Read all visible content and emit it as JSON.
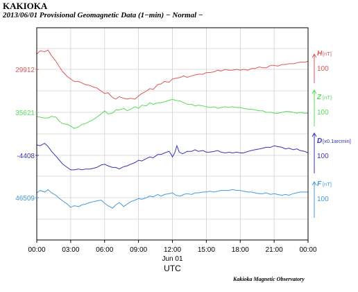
{
  "header": {
    "station": "KAKIOKA",
    "subtitle": "2013/06/01  Provisional Geomagnetic Data (1−min)  − Normal −"
  },
  "footer": {
    "credit": "Kakioka Magnetic Observatory"
  },
  "chart_data": {
    "type": "line",
    "title": "KAKIOKA",
    "subtitle": "2013/06/01  Provisional Geomagnetic Data (1−min)  − Normal −",
    "xlabel": "UTC",
    "x_tick_labels": [
      "00:00",
      "03:00",
      "06:00",
      "09:00",
      "12:00",
      "15:00",
      "18:00",
      "21:00",
      "00:00"
    ],
    "x_date_label": "Jun 01",
    "x_range_hours": [
      0,
      24
    ],
    "grid": true,
    "series": [
      {
        "name": "H",
        "unit_label": "[nT]",
        "color": "#e05555",
        "ref_value_label": "29912",
        "scale_label": "100",
        "points": [
          [
            0,
            -38
          ],
          [
            0.3,
            -46
          ],
          [
            0.7,
            -44
          ],
          [
            1.0,
            -48
          ],
          [
            1.3,
            -34
          ],
          [
            1.7,
            -20
          ],
          [
            2.0,
            -6
          ],
          [
            2.3,
            6
          ],
          [
            2.7,
            18
          ],
          [
            3.0,
            24
          ],
          [
            3.3,
            30
          ],
          [
            3.7,
            30
          ],
          [
            4.0,
            34
          ],
          [
            4.3,
            38
          ],
          [
            4.7,
            40
          ],
          [
            5.0,
            44
          ],
          [
            5.3,
            46
          ],
          [
            5.7,
            54
          ],
          [
            6.0,
            60
          ],
          [
            6.3,
            58
          ],
          [
            6.7,
            70
          ],
          [
            7.0,
            74
          ],
          [
            7.3,
            68
          ],
          [
            7.7,
            72
          ],
          [
            8.0,
            74
          ],
          [
            8.3,
            72
          ],
          [
            8.7,
            74
          ],
          [
            9.0,
            66
          ],
          [
            9.3,
            60
          ],
          [
            9.7,
            54
          ],
          [
            10.0,
            48
          ],
          [
            10.3,
            50
          ],
          [
            10.7,
            38
          ],
          [
            11.0,
            36
          ],
          [
            11.3,
            30
          ],
          [
            11.7,
            32
          ],
          [
            12.0,
            24
          ],
          [
            12.3,
            22
          ],
          [
            12.7,
            20
          ],
          [
            13.0,
            16
          ],
          [
            13.3,
            20
          ],
          [
            13.7,
            16
          ],
          [
            14.0,
            14
          ],
          [
            14.3,
            12
          ],
          [
            14.7,
            12
          ],
          [
            15.0,
            8
          ],
          [
            15.3,
            8
          ],
          [
            15.7,
            6
          ],
          [
            16.0,
            2
          ],
          [
            16.3,
            4
          ],
          [
            16.7,
            0
          ],
          [
            17.0,
            2
          ],
          [
            17.3,
            2
          ],
          [
            17.7,
            0
          ],
          [
            18.0,
            2
          ],
          [
            18.3,
            0
          ],
          [
            18.7,
            2
          ],
          [
            19.0,
            -2
          ],
          [
            19.3,
            -2
          ],
          [
            19.7,
            -6
          ],
          [
            20.0,
            -4
          ],
          [
            20.3,
            -4
          ],
          [
            20.7,
            -10
          ],
          [
            21.0,
            -10
          ],
          [
            21.3,
            -8
          ],
          [
            21.7,
            -12
          ],
          [
            22.0,
            -12
          ],
          [
            22.3,
            -14
          ],
          [
            22.7,
            -14
          ],
          [
            23.0,
            -16
          ],
          [
            23.3,
            -18
          ],
          [
            23.7,
            -18
          ],
          [
            24.0,
            -20
          ]
        ]
      },
      {
        "name": "Z",
        "unit_label": "[nT]",
        "color": "#55dd55",
        "ref_value_label": "35621",
        "scale_label": "100",
        "points": [
          [
            0,
            10
          ],
          [
            0.3,
            12
          ],
          [
            0.7,
            14
          ],
          [
            1.0,
            14
          ],
          [
            1.3,
            10
          ],
          [
            1.7,
            12
          ],
          [
            2.0,
            22
          ],
          [
            2.3,
            28
          ],
          [
            2.7,
            30
          ],
          [
            3.0,
            34
          ],
          [
            3.3,
            40
          ],
          [
            3.7,
            36
          ],
          [
            4.0,
            30
          ],
          [
            4.3,
            28
          ],
          [
            4.7,
            22
          ],
          [
            5.0,
            18
          ],
          [
            5.3,
            12
          ],
          [
            5.7,
            4
          ],
          [
            6.0,
            -4
          ],
          [
            6.3,
            4
          ],
          [
            6.7,
            2
          ],
          [
            7.0,
            -6
          ],
          [
            7.3,
            -6
          ],
          [
            7.7,
            -10
          ],
          [
            8.0,
            -4
          ],
          [
            8.3,
            -8
          ],
          [
            8.7,
            -14
          ],
          [
            9.0,
            -10
          ],
          [
            9.3,
            -18
          ],
          [
            9.7,
            -16
          ],
          [
            10.0,
            -24
          ],
          [
            10.3,
            -20
          ],
          [
            10.7,
            -24
          ],
          [
            11.0,
            -24
          ],
          [
            11.3,
            -26
          ],
          [
            11.7,
            -30
          ],
          [
            12.0,
            -32
          ],
          [
            12.3,
            -30
          ],
          [
            12.7,
            -28
          ],
          [
            13.0,
            -24
          ],
          [
            13.3,
            -20
          ],
          [
            13.7,
            -20
          ],
          [
            14.0,
            -16
          ],
          [
            14.3,
            -18
          ],
          [
            14.7,
            -16
          ],
          [
            15.0,
            -14
          ],
          [
            15.3,
            -12
          ],
          [
            15.7,
            -14
          ],
          [
            16.0,
            -10
          ],
          [
            16.3,
            -12
          ],
          [
            16.7,
            -14
          ],
          [
            17.0,
            -12
          ],
          [
            17.3,
            -14
          ],
          [
            17.7,
            -12
          ],
          [
            18.0,
            -12
          ],
          [
            18.3,
            -10
          ],
          [
            18.7,
            -8
          ],
          [
            19.0,
            -8
          ],
          [
            19.3,
            -6
          ],
          [
            19.7,
            -4
          ],
          [
            20.0,
            -4
          ],
          [
            20.3,
            0
          ],
          [
            20.7,
            0
          ],
          [
            21.0,
            2
          ],
          [
            21.3,
            2
          ],
          [
            21.7,
            0
          ],
          [
            22.0,
            -2
          ],
          [
            22.3,
            -2
          ],
          [
            22.7,
            0
          ],
          [
            23.0,
            2
          ],
          [
            23.3,
            0
          ],
          [
            23.7,
            2
          ],
          [
            24.0,
            2
          ]
        ]
      },
      {
        "name": "D",
        "unit_label": "[x0.1arcmin]",
        "color": "#3333bb",
        "ref_value_label": "-4408",
        "scale_label": "100",
        "points": [
          [
            0,
            -26
          ],
          [
            0.3,
            -24
          ],
          [
            0.7,
            -30
          ],
          [
            1.0,
            -22
          ],
          [
            1.3,
            -10
          ],
          [
            1.7,
            2
          ],
          [
            2.0,
            12
          ],
          [
            2.3,
            22
          ],
          [
            2.7,
            30
          ],
          [
            3.0,
            36
          ],
          [
            3.3,
            36
          ],
          [
            3.7,
            34
          ],
          [
            4.0,
            36
          ],
          [
            4.3,
            34
          ],
          [
            4.7,
            34
          ],
          [
            5.0,
            32
          ],
          [
            5.3,
            30
          ],
          [
            5.7,
            24
          ],
          [
            6.0,
            22
          ],
          [
            6.3,
            26
          ],
          [
            6.7,
            30
          ],
          [
            7.0,
            30
          ],
          [
            7.3,
            34
          ],
          [
            7.7,
            28
          ],
          [
            8.0,
            26
          ],
          [
            8.3,
            22
          ],
          [
            8.7,
            18
          ],
          [
            9.0,
            12
          ],
          [
            9.3,
            14
          ],
          [
            9.7,
            8
          ],
          [
            10.0,
            4
          ],
          [
            10.3,
            6
          ],
          [
            10.7,
            -2
          ],
          [
            11.0,
            -2
          ],
          [
            11.3,
            -6
          ],
          [
            11.7,
            -10
          ],
          [
            11.9,
            -2
          ],
          [
            12.0,
            4
          ],
          [
            12.2,
            -6
          ],
          [
            12.4,
            -24
          ],
          [
            12.6,
            -8
          ],
          [
            12.9,
            -4
          ],
          [
            13.3,
            -10
          ],
          [
            13.7,
            -10
          ],
          [
            14.0,
            -14
          ],
          [
            14.3,
            -10
          ],
          [
            14.7,
            -12
          ],
          [
            15.0,
            -8
          ],
          [
            15.3,
            -8
          ],
          [
            15.7,
            -10
          ],
          [
            16.0,
            -12
          ],
          [
            16.3,
            -8
          ],
          [
            16.7,
            -6
          ],
          [
            17.0,
            -8
          ],
          [
            17.3,
            -6
          ],
          [
            17.7,
            -8
          ],
          [
            18.0,
            -6
          ],
          [
            18.3,
            -6
          ],
          [
            18.7,
            -10
          ],
          [
            19.0,
            -12
          ],
          [
            19.3,
            -14
          ],
          [
            19.7,
            -16
          ],
          [
            20.0,
            -18
          ],
          [
            20.3,
            -20
          ],
          [
            20.7,
            -20
          ],
          [
            21.0,
            -24
          ],
          [
            21.3,
            -22
          ],
          [
            21.7,
            -20
          ],
          [
            22.0,
            -16
          ],
          [
            22.3,
            -18
          ],
          [
            22.7,
            -14
          ],
          [
            23.0,
            -16
          ],
          [
            23.3,
            -12
          ],
          [
            23.7,
            -10
          ],
          [
            24.0,
            -6
          ]
        ]
      },
      {
        "name": "F",
        "unit_label": "[nT]",
        "color": "#4499dd",
        "ref_value_label": "46509",
        "scale_label": "100",
        "points": [
          [
            0,
            -12
          ],
          [
            0.3,
            -18
          ],
          [
            0.7,
            -14
          ],
          [
            1.0,
            -20
          ],
          [
            1.3,
            -12
          ],
          [
            1.7,
            -6
          ],
          [
            2.0,
            2
          ],
          [
            2.3,
            8
          ],
          [
            2.7,
            16
          ],
          [
            3.0,
            24
          ],
          [
            3.3,
            20
          ],
          [
            3.7,
            22
          ],
          [
            4.0,
            18
          ],
          [
            4.3,
            16
          ],
          [
            4.7,
            12
          ],
          [
            5.0,
            10
          ],
          [
            5.3,
            8
          ],
          [
            5.7,
            6
          ],
          [
            6.0,
            14
          ],
          [
            6.3,
            20
          ],
          [
            6.7,
            26
          ],
          [
            7.0,
            18
          ],
          [
            7.3,
            12
          ],
          [
            7.7,
            22
          ],
          [
            8.0,
            16
          ],
          [
            8.3,
            10
          ],
          [
            8.7,
            6
          ],
          [
            9.0,
            2
          ],
          [
            9.3,
            4
          ],
          [
            9.7,
            0
          ],
          [
            10.0,
            -4
          ],
          [
            10.3,
            -2
          ],
          [
            10.7,
            -8
          ],
          [
            11.0,
            -4
          ],
          [
            11.3,
            -8
          ],
          [
            11.7,
            -10
          ],
          [
            12.0,
            -12
          ],
          [
            12.3,
            -6
          ],
          [
            12.7,
            -4
          ],
          [
            13.0,
            -8
          ],
          [
            13.3,
            -10
          ],
          [
            13.7,
            -8
          ],
          [
            14.0,
            -12
          ],
          [
            14.3,
            -12
          ],
          [
            14.7,
            -14
          ],
          [
            15.0,
            -14
          ],
          [
            15.3,
            -16
          ],
          [
            15.7,
            -14
          ],
          [
            16.0,
            -16
          ],
          [
            16.3,
            -18
          ],
          [
            16.7,
            -18
          ],
          [
            17.0,
            -18
          ],
          [
            17.3,
            -20
          ],
          [
            17.7,
            -18
          ],
          [
            18.0,
            -18
          ],
          [
            18.3,
            -16
          ],
          [
            18.7,
            -14
          ],
          [
            19.0,
            -14
          ],
          [
            19.3,
            -12
          ],
          [
            19.7,
            -10
          ],
          [
            20.0,
            -10
          ],
          [
            20.3,
            -12
          ],
          [
            20.7,
            -8
          ],
          [
            21.0,
            -10
          ],
          [
            21.3,
            -8
          ],
          [
            21.7,
            -6
          ],
          [
            22.0,
            -8
          ],
          [
            22.3,
            -6
          ],
          [
            22.7,
            -10
          ],
          [
            23.0,
            -12
          ],
          [
            23.3,
            -14
          ],
          [
            23.7,
            -14
          ],
          [
            24.0,
            -14
          ]
        ]
      }
    ]
  }
}
